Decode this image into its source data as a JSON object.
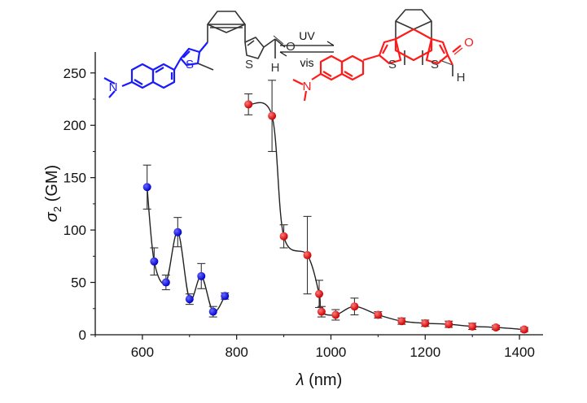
{
  "chart_data": {
    "type": "scatter",
    "xlabel": "λ (nm)",
    "ylabel": "σ2 (GM)",
    "xlim": [
      500,
      1450
    ],
    "ylim": [
      0,
      270
    ],
    "x_ticks": [
      600,
      800,
      1000,
      1200,
      1400
    ],
    "y_ticks": [
      0,
      50,
      100,
      150,
      200,
      250
    ],
    "grid": false,
    "series": [
      {
        "color": "#1a1aff",
        "x": [
          610,
          625,
          650,
          675,
          700,
          725,
          750,
          775
        ],
        "y": [
          141,
          70,
          50,
          98,
          34,
          56,
          22,
          37
        ],
        "err": [
          21,
          13,
          7,
          14,
          5,
          12,
          5,
          3
        ]
      },
      {
        "color": "#ff1a1a",
        "x": [
          825,
          875,
          900,
          950,
          975,
          980,
          1010,
          1050,
          1100,
          1150,
          1200,
          1250,
          1300,
          1350,
          1410
        ],
        "y": [
          220,
          209,
          94,
          76,
          39,
          22,
          19,
          27,
          19,
          13,
          11,
          10,
          8,
          7,
          5
        ],
        "err": [
          10,
          34,
          11,
          37,
          13,
          5,
          5,
          8,
          3,
          3,
          3,
          3,
          3,
          2,
          2
        ]
      }
    ],
    "annotations": {
      "arrow_top": "UV",
      "arrow_bottom": "vis"
    }
  },
  "molecules": {
    "open_color": "#1a1aff",
    "closed_color": "#ff1a1a",
    "atom_S": "S",
    "atom_N": "N",
    "atom_O": "O",
    "atom_H": "H"
  }
}
